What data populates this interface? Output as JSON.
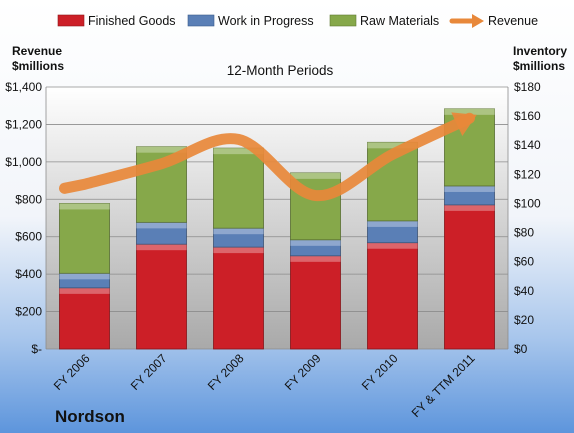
{
  "company": "Nordson",
  "chart_data": {
    "type": "bar",
    "stacked": true,
    "subtitle": "12-Month Periods",
    "categories": [
      "FY 2006",
      "FY 2007",
      "FY 2008",
      "FY 2009",
      "FY 2010",
      "FY & TTM 2011"
    ],
    "series": [
      {
        "name": "Finished Goods",
        "axis": "right",
        "color": "#cc1f27",
        "values": [
          42,
          72,
          70,
          64,
          73,
          99
        ]
      },
      {
        "name": "Work in Progress",
        "axis": "right",
        "color": "#5a7fb6",
        "values": [
          10,
          15,
          13,
          11,
          15,
          13
        ]
      },
      {
        "name": "Raw Materials",
        "axis": "right",
        "color": "#86a84a",
        "values": [
          48,
          52,
          55,
          46,
          54,
          53
        ]
      }
    ],
    "line_series": {
      "name": "Revenue",
      "axis": "left",
      "color": "#e8883a",
      "values": [
        880,
        990,
        1120,
        820,
        1040,
        1233
      ]
    },
    "left_axis": {
      "title_lines": [
        "Revenue",
        "$millions"
      ],
      "min": 0,
      "max": 1400,
      "step": 200,
      "tick_labels": [
        "$-",
        "$200",
        "$400",
        "$600",
        "$800",
        "$1,000",
        "$1,200",
        "$1,400"
      ]
    },
    "right_axis": {
      "title_lines": [
        "Inventory",
        "$millions"
      ],
      "min": 0,
      "max": 180,
      "step": 20,
      "tick_labels": [
        "$0",
        "$20",
        "$40",
        "$60",
        "$80",
        "$100",
        "$120",
        "$140",
        "$160",
        "$180"
      ]
    },
    "grid": true,
    "legend_position": "top"
  }
}
